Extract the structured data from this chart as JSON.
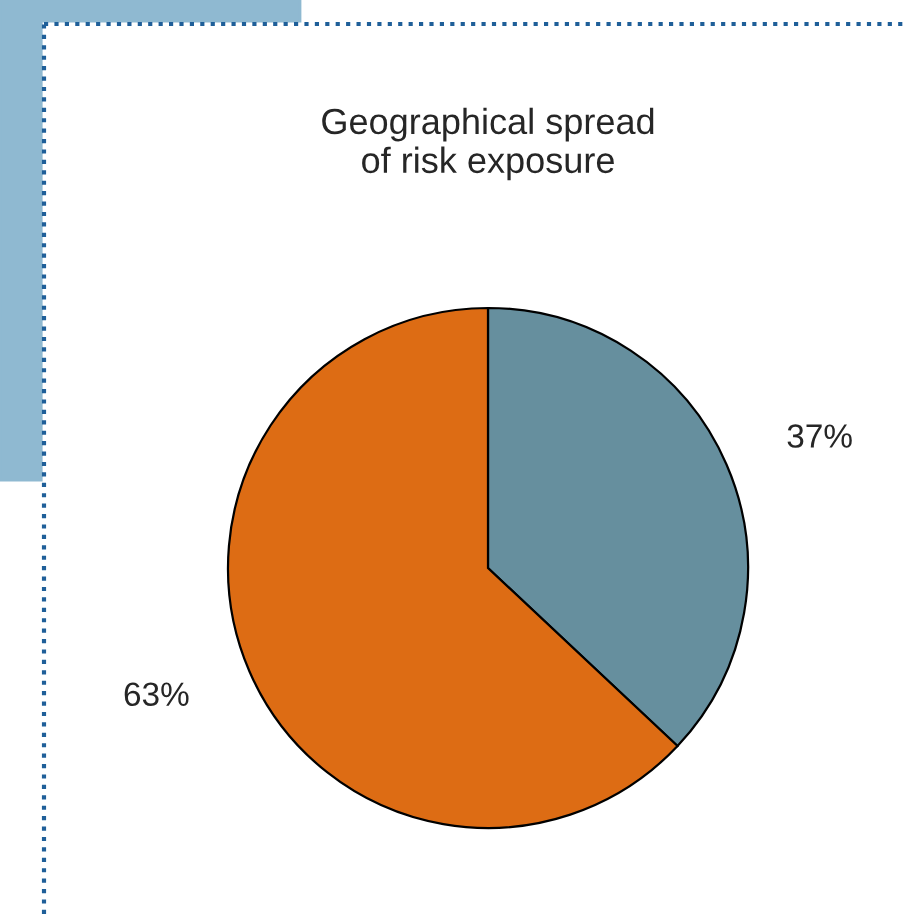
{
  "chart_data": {
    "type": "pie",
    "title": "Geographical spread\nof risk exposure",
    "categories": [
      null,
      null
    ],
    "values": [
      37,
      63
    ],
    "colors": [
      "#668f9e",
      "#dd6c14"
    ],
    "value_labels": [
      "37%",
      "63%"
    ]
  }
}
